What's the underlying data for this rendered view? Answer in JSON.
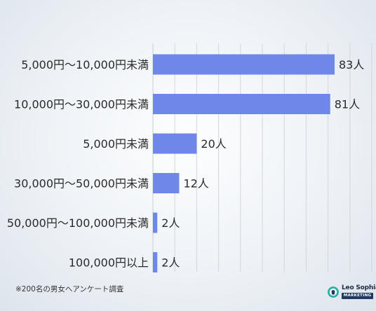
{
  "chart_data": {
    "type": "bar",
    "orientation": "horizontal",
    "categories": [
      "5,000円〜10,000円未満",
      "10,000円〜30,000円未満",
      "5,000円未満",
      "30,000円〜50,000円未満",
      "50,000円〜100,000円未満",
      "100,000円以上"
    ],
    "values": [
      83,
      81,
      20,
      12,
      2,
      2
    ],
    "value_labels": [
      "83人",
      "81人",
      "20人",
      "12人",
      "2人",
      "2人"
    ],
    "xlim": [
      0,
      100
    ],
    "grid": true,
    "bar_color": "#6f87e8"
  },
  "footnote": "※200名の男女へアンケート調査",
  "logo": {
    "name": "Leo Sophia",
    "tagline": "MARKETING"
  }
}
